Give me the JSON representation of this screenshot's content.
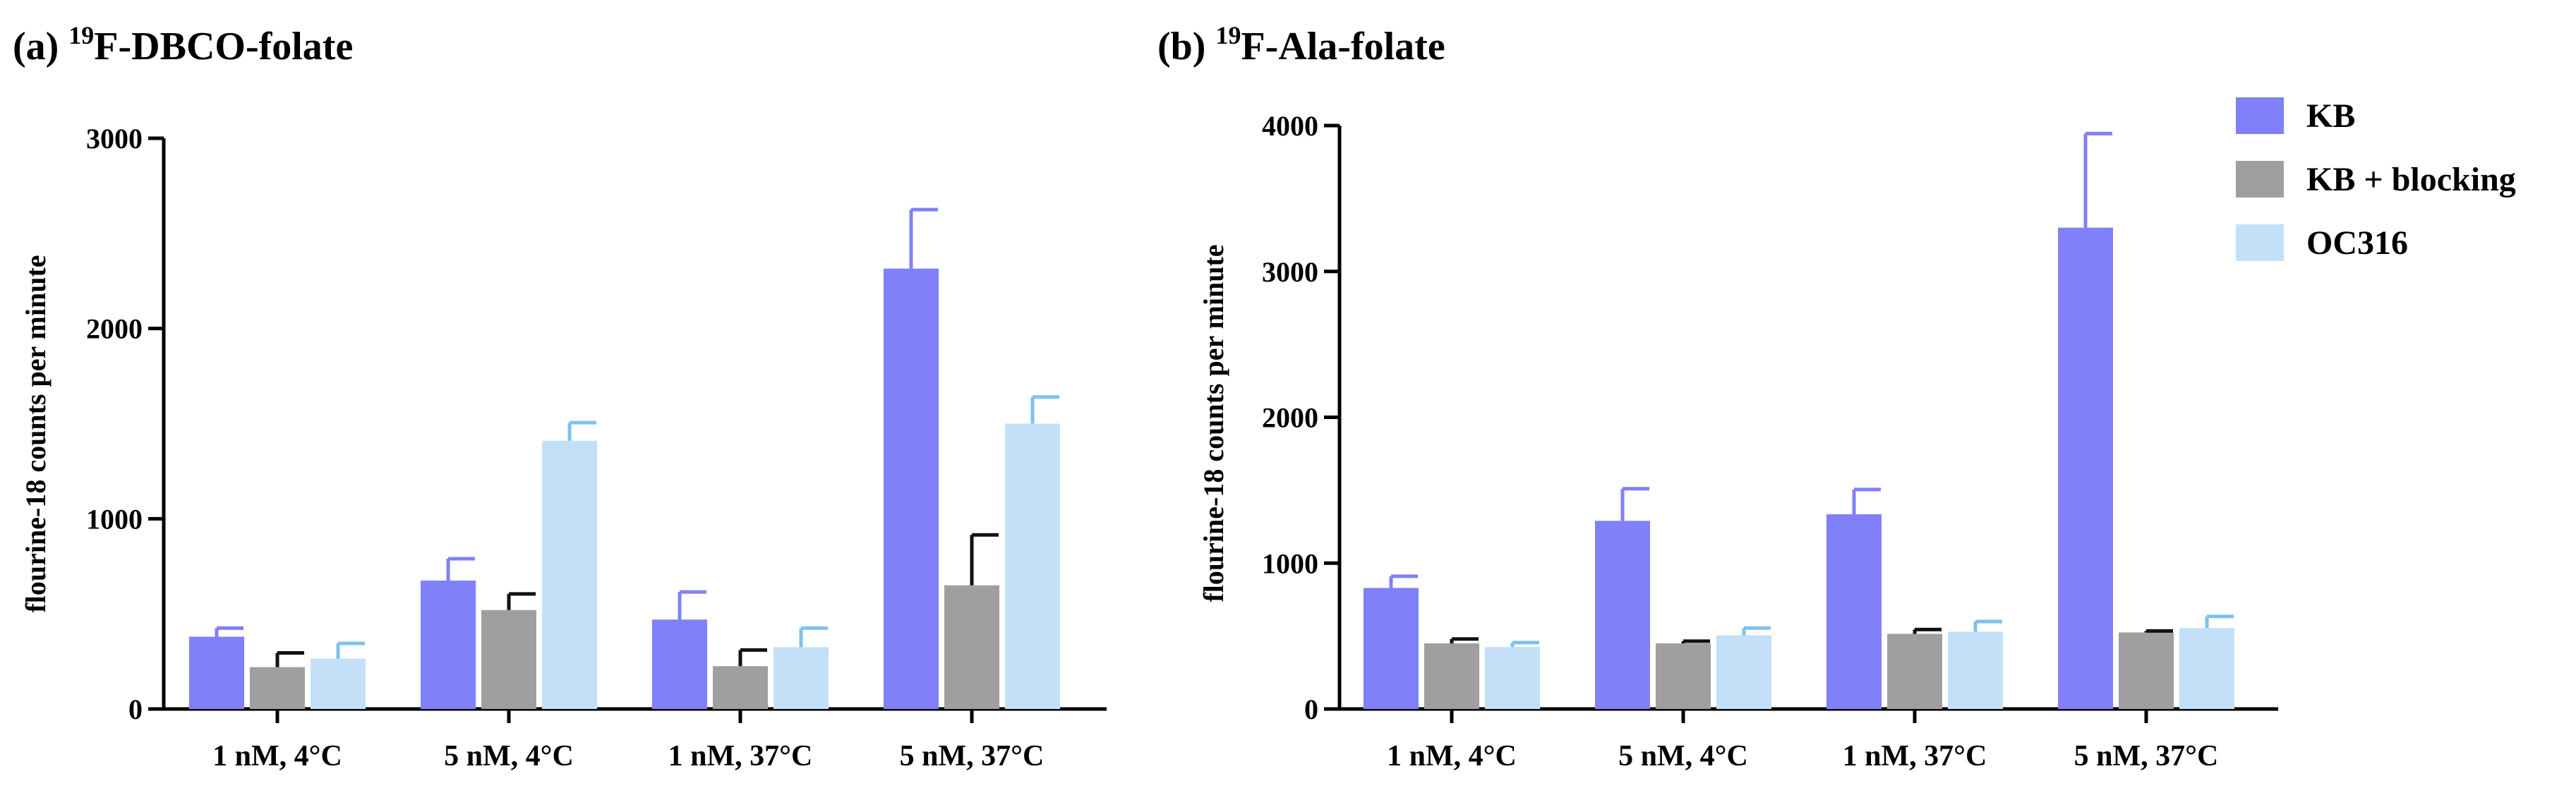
{
  "legend": [
    {
      "name": "KB",
      "color": "#8080f8",
      "error_color": "#8080f8"
    },
    {
      "name": "KB + blocking",
      "color": "#a19ea2",
      "error_color": "#111111"
    },
    {
      "name": "OC316",
      "color": "#c3e0f8",
      "error_color": "#7ec2ee"
    }
  ],
  "chart_data": [
    {
      "type": "bar",
      "panel_prefix": "(a) ",
      "title_superscript": "19",
      "title_rest": "F-DBCO-folate",
      "xlabel": "",
      "ylabel": "flourine-18 counts per minute",
      "ylim": [
        0,
        3000
      ],
      "yticks": [
        0,
        1000,
        2000,
        3000
      ],
      "categories": [
        "1 nM, 4°C",
        "5 nM, 4°C",
        "1 nM, 37°C",
        "5 nM, 37°C"
      ],
      "series": [
        {
          "name": "KB",
          "values": [
            380,
            675,
            470,
            2315
          ],
          "errors": [
            45,
            115,
            145,
            310
          ]
        },
        {
          "name": "KB + blocking",
          "values": [
            220,
            520,
            225,
            650
          ],
          "errors": [
            75,
            85,
            85,
            265
          ]
        },
        {
          "name": "OC316",
          "values": [
            265,
            1410,
            325,
            1500
          ],
          "errors": [
            80,
            95,
            100,
            140
          ]
        }
      ]
    },
    {
      "type": "bar",
      "panel_prefix": "(b) ",
      "title_superscript": "19",
      "title_rest": "F-Ala-folate",
      "xlabel": "",
      "ylabel": "flourine-18 counts per minute",
      "ylim": [
        0,
        4000
      ],
      "yticks": [
        0,
        1000,
        2000,
        3000,
        4000
      ],
      "categories": [
        "1 nM, 4°C",
        "5 nM, 4°C",
        "1 nM, 37°C",
        "5 nM, 37°C"
      ],
      "series": [
        {
          "name": "KB",
          "values": [
            830,
            1290,
            1335,
            3300
          ],
          "errors": [
            80,
            220,
            170,
            645
          ]
        },
        {
          "name": "KB + blocking",
          "values": [
            450,
            450,
            515,
            525
          ],
          "errors": [
            30,
            15,
            30,
            10
          ]
        },
        {
          "name": "OC316",
          "values": [
            425,
            505,
            530,
            555
          ],
          "errors": [
            30,
            50,
            70,
            80
          ]
        }
      ],
      "legend_position": "top-right"
    }
  ]
}
